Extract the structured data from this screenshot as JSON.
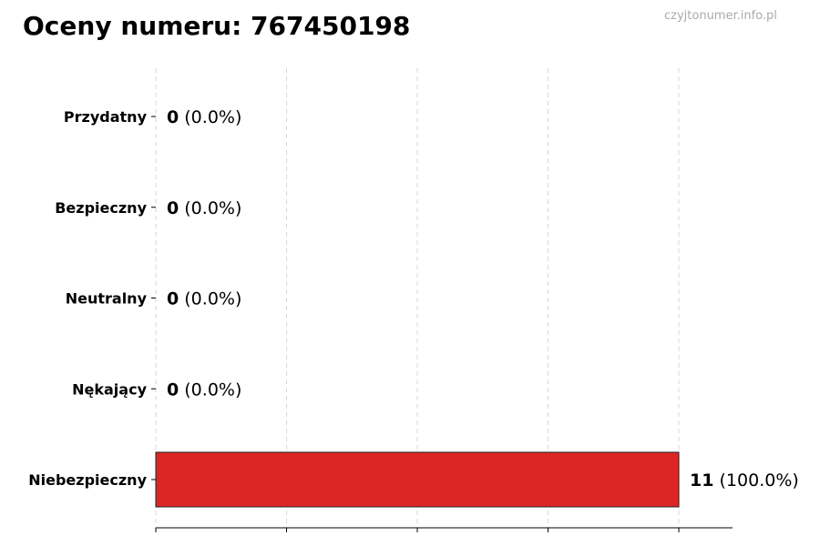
{
  "chart_data": {
    "type": "bar",
    "orientation": "horizontal",
    "title": "Oceny numeru: 767450198",
    "watermark": "czyjtonumer.info.pl",
    "categories": [
      "Przydatny",
      "Bezpieczny",
      "Neutralny",
      "Nękający",
      "Niebezpieczny"
    ],
    "values": [
      0,
      0,
      0,
      0,
      11
    ],
    "percent_labels": [
      "(0.0%)",
      "(0.0%)",
      "(0.0%)",
      "(0.0%)",
      "(100.0%)"
    ],
    "colors": [
      "#2ca02c",
      "#1f77b4",
      "#7f7f7f",
      "#ff7f0e",
      "#dc2626"
    ],
    "xlim": [
      0,
      12.13
    ],
    "xticks": [
      0,
      2.75,
      5.5,
      8.25,
      11
    ],
    "xtick_labels_shown": false,
    "grid": "vertical-dashed",
    "xlabel": "",
    "ylabel": ""
  }
}
